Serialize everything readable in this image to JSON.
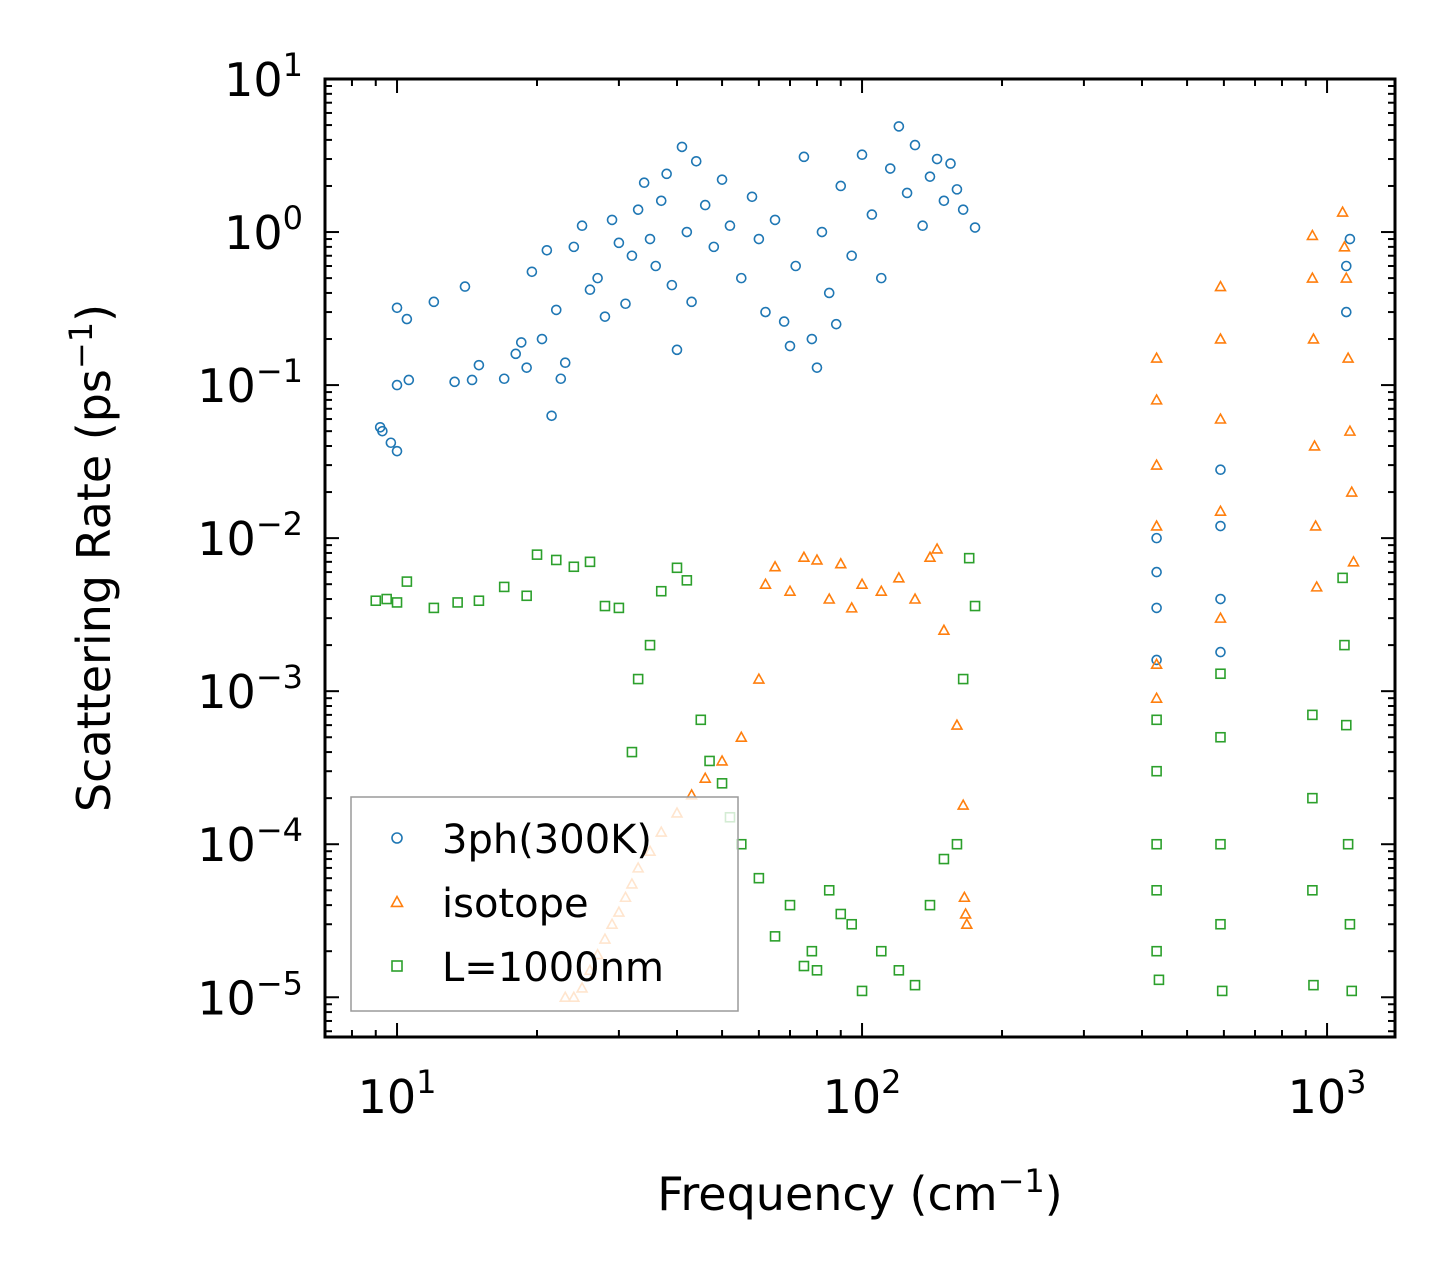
{
  "chart_data": {
    "type": "scatter",
    "xscale": "log",
    "yscale": "log",
    "xlabel_main": "Frequency (cm",
    "xlabel_sup": "−1",
    "xlabel_close": ")",
    "ylabel_main": "Scattering Rate (ps",
    "ylabel_sup": "−1",
    "ylabel_close": ")",
    "xlim": [
      7,
      1400
    ],
    "ylim": [
      5.5e-06,
      10
    ],
    "xticks": [
      {
        "value": 10,
        "base": "10",
        "exp": "1"
      },
      {
        "value": 100,
        "base": "10",
        "exp": "2"
      },
      {
        "value": 1000,
        "base": "10",
        "exp": "3"
      }
    ],
    "yticks": [
      {
        "value": 10,
        "base": "10",
        "exp": "1"
      },
      {
        "value": 1,
        "base": "10",
        "exp": "0"
      },
      {
        "value": 0.1,
        "base": "10",
        "exp": "−1"
      },
      {
        "value": 0.01,
        "base": "10",
        "exp": "−2"
      },
      {
        "value": 0.001,
        "base": "10",
        "exp": "−3"
      },
      {
        "value": 0.0001,
        "base": "10",
        "exp": "−4"
      },
      {
        "value": 1e-05,
        "base": "10",
        "exp": "−5"
      }
    ],
    "legend_position": "lower-left",
    "series": [
      {
        "name": "3ph(300K)",
        "marker": "circle",
        "color": "#1f77b4",
        "points": [
          [
            9.2,
            0.053
          ],
          [
            9.3,
            0.05
          ],
          [
            9.7,
            0.042
          ],
          [
            10,
            0.037
          ],
          [
            10,
            0.1
          ],
          [
            10,
            0.32
          ],
          [
            10.5,
            0.27
          ],
          [
            10.6,
            0.108
          ],
          [
            12,
            0.35
          ],
          [
            13.3,
            0.105
          ],
          [
            14,
            0.44
          ],
          [
            14.5,
            0.108
          ],
          [
            15,
            0.135
          ],
          [
            17,
            0.11
          ],
          [
            18,
            0.16
          ],
          [
            18.5,
            0.19
          ],
          [
            19,
            0.13
          ],
          [
            19.5,
            0.55
          ],
          [
            20.5,
            0.2
          ],
          [
            21,
            0.76
          ],
          [
            21.5,
            0.063
          ],
          [
            22,
            0.31
          ],
          [
            22.5,
            0.11
          ],
          [
            23,
            0.14
          ],
          [
            24,
            0.8
          ],
          [
            25,
            1.1
          ],
          [
            26,
            0.42
          ],
          [
            27,
            0.5
          ],
          [
            28,
            0.28
          ],
          [
            29,
            1.2
          ],
          [
            30,
            0.85
          ],
          [
            31,
            0.34
          ],
          [
            32,
            0.7
          ],
          [
            33,
            1.4
          ],
          [
            34,
            2.1
          ],
          [
            35,
            0.9
          ],
          [
            36,
            0.6
          ],
          [
            37,
            1.6
          ],
          [
            38,
            2.4
          ],
          [
            39,
            0.45
          ],
          [
            40,
            0.17
          ],
          [
            41,
            3.6
          ],
          [
            42,
            1.0
          ],
          [
            43,
            0.35
          ],
          [
            44,
            2.9
          ],
          [
            46,
            1.5
          ],
          [
            48,
            0.8
          ],
          [
            50,
            2.2
          ],
          [
            52,
            1.1
          ],
          [
            55,
            0.5
          ],
          [
            58,
            1.7
          ],
          [
            60,
            0.9
          ],
          [
            62,
            0.3
          ],
          [
            65,
            1.2
          ],
          [
            68,
            0.26
          ],
          [
            70,
            0.18
          ],
          [
            72,
            0.6
          ],
          [
            75,
            3.1
          ],
          [
            78,
            0.2
          ],
          [
            80,
            0.13
          ],
          [
            82,
            1.0
          ],
          [
            85,
            0.4
          ],
          [
            88,
            0.25
          ],
          [
            90,
            2.0
          ],
          [
            95,
            0.7
          ],
          [
            100,
            3.2
          ],
          [
            105,
            1.3
          ],
          [
            110,
            0.5
          ],
          [
            115,
            2.6
          ],
          [
            120,
            4.9
          ],
          [
            125,
            1.8
          ],
          [
            130,
            3.7
          ],
          [
            135,
            1.1
          ],
          [
            140,
            2.3
          ],
          [
            145,
            3.0
          ],
          [
            150,
            1.6
          ],
          [
            155,
            2.8
          ],
          [
            160,
            1.9
          ],
          [
            165,
            1.4
          ],
          [
            175,
            1.07
          ],
          [
            430,
            0.0016
          ],
          [
            430,
            0.0035
          ],
          [
            430,
            0.006
          ],
          [
            430,
            0.01
          ],
          [
            590,
            0.0018
          ],
          [
            590,
            0.004
          ],
          [
            590,
            0.012
          ],
          [
            590,
            0.028
          ],
          [
            1100,
            0.3
          ],
          [
            1100,
            0.6
          ],
          [
            1120,
            0.9
          ]
        ]
      },
      {
        "name": "isotope",
        "marker": "triangle",
        "color": "#ff7f0e",
        "points": [
          [
            23,
            1e-05
          ],
          [
            24,
            1e-05
          ],
          [
            25,
            1.15e-05
          ],
          [
            26,
            1.5e-05
          ],
          [
            27,
            1.9e-05
          ],
          [
            28,
            2.4e-05
          ],
          [
            29,
            3e-05
          ],
          [
            30,
            3.6e-05
          ],
          [
            31,
            4.5e-05
          ],
          [
            32,
            5.5e-05
          ],
          [
            33,
            7e-05
          ],
          [
            35,
            9e-05
          ],
          [
            37,
            0.00012
          ],
          [
            40,
            0.00016
          ],
          [
            43,
            0.00021
          ],
          [
            46,
            0.00027
          ],
          [
            50,
            0.00035
          ],
          [
            55,
            0.0005
          ],
          [
            60,
            0.0012
          ],
          [
            62,
            0.005
          ],
          [
            65,
            0.0065
          ],
          [
            70,
            0.0045
          ],
          [
            75,
            0.0075
          ],
          [
            80,
            0.0072
          ],
          [
            85,
            0.004
          ],
          [
            90,
            0.0068
          ],
          [
            95,
            0.0035
          ],
          [
            100,
            0.005
          ],
          [
            110,
            0.0045
          ],
          [
            120,
            0.0055
          ],
          [
            130,
            0.004
          ],
          [
            140,
            0.0075
          ],
          [
            145,
            0.0085
          ],
          [
            150,
            0.0025
          ],
          [
            160,
            0.0006
          ],
          [
            165,
            0.00018
          ],
          [
            166,
            4.5e-05
          ],
          [
            167,
            3.5e-05
          ],
          [
            168,
            3e-05
          ],
          [
            430,
            0.15
          ],
          [
            430,
            0.08
          ],
          [
            430,
            0.03
          ],
          [
            430,
            0.012
          ],
          [
            430,
            0.0015
          ],
          [
            430,
            0.0009
          ],
          [
            590,
            0.44
          ],
          [
            590,
            0.2
          ],
          [
            590,
            0.06
          ],
          [
            590,
            0.015
          ],
          [
            590,
            0.003
          ],
          [
            930,
            0.95
          ],
          [
            930,
            0.5
          ],
          [
            935,
            0.2
          ],
          [
            940,
            0.04
          ],
          [
            945,
            0.012
          ],
          [
            950,
            0.0048
          ],
          [
            1080,
            1.35
          ],
          [
            1090,
            0.8
          ],
          [
            1100,
            0.5
          ],
          [
            1110,
            0.15
          ],
          [
            1120,
            0.05
          ],
          [
            1130,
            0.02
          ],
          [
            1140,
            0.007
          ]
        ]
      },
      {
        "name": "L=1000nm",
        "marker": "square",
        "color": "#2ca02c",
        "points": [
          [
            9,
            0.0039
          ],
          [
            9.5,
            0.004
          ],
          [
            10,
            0.0038
          ],
          [
            10.5,
            0.0052
          ],
          [
            12,
            0.0035
          ],
          [
            13.5,
            0.0038
          ],
          [
            15,
            0.0039
          ],
          [
            17,
            0.0048
          ],
          [
            19,
            0.0042
          ],
          [
            20,
            0.0078
          ],
          [
            22,
            0.0072
          ],
          [
            24,
            0.0065
          ],
          [
            26,
            0.007
          ],
          [
            28,
            0.0036
          ],
          [
            30,
            0.0035
          ],
          [
            32,
            0.0004
          ],
          [
            33,
            0.0012
          ],
          [
            35,
            0.002
          ],
          [
            37,
            0.0045
          ],
          [
            40,
            0.0064
          ],
          [
            42,
            0.0053
          ],
          [
            45,
            0.00065
          ],
          [
            47,
            0.00035
          ],
          [
            50,
            0.00025
          ],
          [
            52,
            0.00015
          ],
          [
            55,
            0.0001
          ],
          [
            60,
            6e-05
          ],
          [
            65,
            2.5e-05
          ],
          [
            70,
            4e-05
          ],
          [
            75,
            1.6e-05
          ],
          [
            78,
            2e-05
          ],
          [
            80,
            1.5e-05
          ],
          [
            85,
            5e-05
          ],
          [
            90,
            3.5e-05
          ],
          [
            95,
            3e-05
          ],
          [
            100,
            1.1e-05
          ],
          [
            110,
            2e-05
          ],
          [
            120,
            1.5e-05
          ],
          [
            130,
            1.2e-05
          ],
          [
            140,
            4e-05
          ],
          [
            150,
            8e-05
          ],
          [
            160,
            0.0001
          ],
          [
            165,
            0.0012
          ],
          [
            170,
            0.0074
          ],
          [
            175,
            0.0036
          ],
          [
            430,
            0.00065
          ],
          [
            430,
            0.0003
          ],
          [
            430,
            0.0001
          ],
          [
            430,
            5e-05
          ],
          [
            430,
            2e-05
          ],
          [
            435,
            1.3e-05
          ],
          [
            590,
            0.0013
          ],
          [
            590,
            0.0005
          ],
          [
            590,
            0.0001
          ],
          [
            590,
            3e-05
          ],
          [
            595,
            1.1e-05
          ],
          [
            930,
            0.0007
          ],
          [
            930,
            0.0002
          ],
          [
            930,
            5e-05
          ],
          [
            935,
            1.2e-05
          ],
          [
            1080,
            0.0055
          ],
          [
            1090,
            0.002
          ],
          [
            1100,
            0.0006
          ],
          [
            1110,
            0.0001
          ],
          [
            1120,
            3e-05
          ],
          [
            1130,
            1.1e-05
          ]
        ]
      }
    ]
  }
}
